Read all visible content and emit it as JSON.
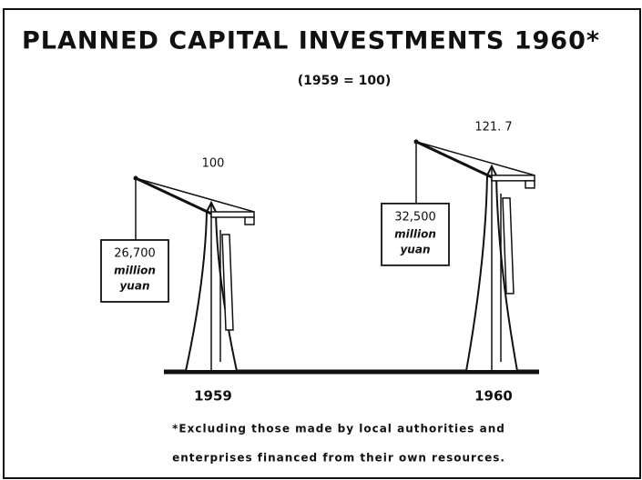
{
  "chart_data": {
    "type": "pictogram",
    "title": "PLANNED CAPITAL  INVESTMENTS 1960*",
    "subtitle": "(1959 = 100)",
    "categories": [
      "1959",
      "1960"
    ],
    "values": [
      100,
      121.7
    ],
    "value_labels": [
      "100",
      "121. 7"
    ],
    "amounts": [
      26700,
      32500
    ],
    "amount_labels": [
      "26,700",
      "32,500"
    ],
    "amount_unit": [
      "million",
      "yuan"
    ],
    "footnote": [
      "*Excluding those made by local authorities and",
      "enterprises financed from their own resources."
    ],
    "color": "#111111"
  }
}
